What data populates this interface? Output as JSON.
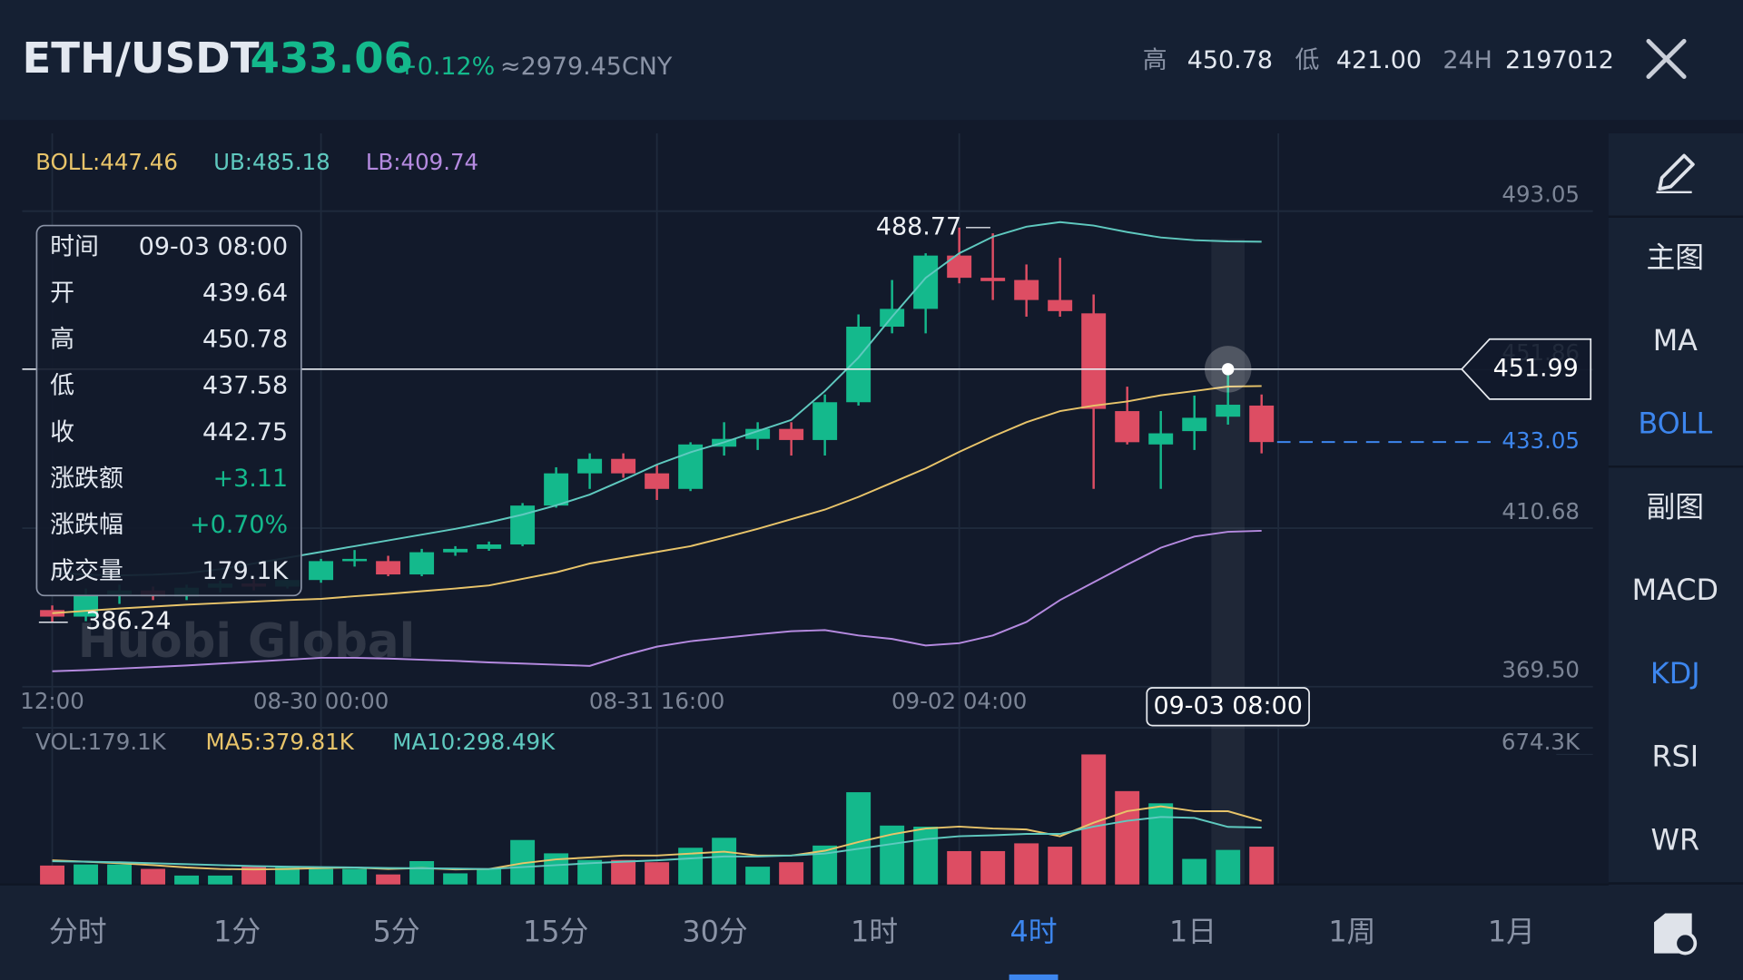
{
  "header": {
    "pair": "ETH/USDT",
    "price": "433.06",
    "change": "+0.12%",
    "cny": "≈2979.45CNY",
    "high_label": "高",
    "high": "450.78",
    "low_label": "低",
    "low": "421.00",
    "vol_label": "24H",
    "vol": "2197012"
  },
  "indicator_legend": {
    "boll": "BOLL:447.46",
    "ub": "UB:485.18",
    "lb": "LB:409.74"
  },
  "volume_legend": {
    "vol": "VOL:179.1K",
    "ma5": "MA5:379.81K",
    "ma10": "MA10:298.49K"
  },
  "watermark": "Huobi Global",
  "tooltip": {
    "rows": [
      {
        "label": "时间",
        "value": "09-03 08:00"
      },
      {
        "label": "开",
        "value": "439.64"
      },
      {
        "label": "高",
        "value": "450.78"
      },
      {
        "label": "低",
        "value": "437.58"
      },
      {
        "label": "收",
        "value": "442.75"
      },
      {
        "label": "涨跌额",
        "value": "+3.11",
        "color": "#14b98c"
      },
      {
        "label": "涨跌幅",
        "value": "+0.70%",
        "color": "#14b98c"
      },
      {
        "label": "成交量",
        "value": "179.1K"
      }
    ]
  },
  "sidebar": [
    {
      "label": "主图"
    },
    {
      "label": "MA"
    },
    {
      "label": "BOLL",
      "active": true
    },
    {
      "label": "副图"
    },
    {
      "label": "MACD"
    },
    {
      "label": "KDJ",
      "active": true
    },
    {
      "label": "RSI"
    },
    {
      "label": "WR"
    }
  ],
  "timeframes": [
    "分时",
    "1分",
    "5分",
    "15分",
    "30分",
    "1时",
    "4时",
    "1日",
    "1周",
    "1月"
  ],
  "timeframe_selected": 6,
  "chart_data": {
    "type": "candlestick",
    "categories": [
      "12:00",
      null,
      null,
      null,
      null,
      null,
      null,
      null,
      "08-30 00:00",
      null,
      null,
      null,
      null,
      null,
      null,
      null,
      null,
      null,
      "08-31 16:00",
      null,
      null,
      null,
      null,
      null,
      null,
      null,
      null,
      "09-02 04:00",
      null,
      null,
      null,
      null,
      null,
      null,
      null,
      null,
      null
    ],
    "open": [
      389.4,
      387.7,
      393.5,
      394.5,
      393,
      395.2,
      396.3,
      395.5,
      397.21,
      402.1,
      402.12,
      398.66,
      404.4,
      405.3,
      406.45,
      416.55,
      424.92,
      428.68,
      424.92,
      420.88,
      431.85,
      433.87,
      436.47,
      433.58,
      443.4,
      463.03,
      467.65,
      481.5,
      475.73,
      475.15,
      469.96,
      466.49,
      441.09,
      432.43,
      435.89,
      439.64,
      442.53
    ],
    "high": [
      390.6,
      395,
      396,
      395.5,
      396,
      397,
      397.5,
      398,
      402.7,
      405,
      403.5,
      405.3,
      406,
      407.2,
      417.2,
      426.5,
      430.12,
      430.12,
      427.23,
      433,
      438.2,
      438.2,
      438.2,
      445.42,
      466.2,
      475.15,
      482.08,
      488.77,
      487.28,
      479.19,
      480.93,
      471.4,
      447.44,
      441.09,
      445.13,
      450.78,
      445.42
    ],
    "low": [
      386.24,
      386.5,
      391,
      392,
      392,
      394,
      394.5,
      395,
      396.5,
      400.7,
      398.2,
      398.2,
      403.5,
      404.8,
      406,
      416,
      420.88,
      423.77,
      418,
      420.31,
      429.54,
      430.99,
      429.54,
      429.54,
      442.53,
      461.3,
      461.3,
      474.29,
      469.96,
      465.63,
      465.63,
      420.88,
      432.43,
      420.88,
      430.99,
      437.58,
      430.12
    ],
    "close": [
      387.7,
      393.5,
      394.5,
      393,
      395.2,
      396.3,
      395.5,
      397.2,
      402.12,
      402.7,
      398.66,
      404.43,
      405.3,
      406.45,
      416.55,
      424.92,
      428.68,
      424.92,
      420.88,
      432.43,
      433.87,
      436.47,
      433.58,
      443.4,
      463.03,
      467.65,
      481.5,
      475.73,
      474.86,
      469.96,
      467.07,
      441.67,
      433.01,
      435.32,
      439.36,
      442.75,
      433.05
    ],
    "up_color": "#14b98c",
    "down_color": "#dd4d63",
    "series": [
      {
        "name": "BOLL",
        "color": "#e8c46a",
        "values": [
          388.6,
          389.2,
          389.8,
          390.3,
          390.8,
          391.2,
          391.6,
          392.0,
          392.3,
          393.0,
          393.6,
          394.3,
          395.0,
          395.8,
          397.5,
          399.2,
          401.5,
          403.0,
          404.5,
          406.0,
          408.2,
          410.5,
          413.0,
          415.5,
          418.8,
          422.5,
          426.2,
          430.5,
          434.5,
          438.2,
          441.1,
          442.5,
          443.6,
          445.2,
          446.3,
          447.46,
          447.6
        ]
      },
      {
        "name": "UB",
        "color": "#5fc9bf",
        "values": [
          399.2,
          398.6,
          398.4,
          398.6,
          399.0,
          400.0,
          401.5,
          403.0,
          404.5,
          406.0,
          407.5,
          409.0,
          410.5,
          412.2,
          414.2,
          416.6,
          419.4,
          423.2,
          427.2,
          430.4,
          433.0,
          435.9,
          438.8,
          446.3,
          455.0,
          465.6,
          475.7,
          482.1,
          486.4,
          489.0,
          490.2,
          489.3,
          487.6,
          486.2,
          485.5,
          485.18,
          485.1
        ]
      },
      {
        "name": "LB",
        "color": "#b58ae0",
        "values": [
          373.5,
          373.8,
          374.2,
          374.6,
          375.0,
          375.5,
          376.0,
          376.5,
          377.0,
          377.0,
          376.8,
          376.5,
          376.2,
          375.8,
          375.5,
          375.2,
          374.9,
          377.6,
          379.9,
          381.3,
          382.2,
          383.1,
          383.9,
          384.2,
          382.8,
          381.9,
          380.2,
          380.8,
          382.8,
          386.3,
          392.0,
          396.6,
          401.2,
          405.6,
          408.5,
          409.74,
          410.0
        ]
      }
    ],
    "ylim": [
      369.5,
      493.05
    ],
    "yticks": [
      493.05,
      451.86,
      410.68,
      {
        "value": 369.5,
        "label": "369.50"
      }
    ],
    "grid": true,
    "max_label": 488.77,
    "min_label": 386.24,
    "last_price": 433.05,
    "last_price_color": "#3d86ee",
    "crosshair": 451.99,
    "crosshair_time": "09-03 08:00",
    "selected_index": 35,
    "volume": [
      98.0,
      103.7,
      103.7,
      80.7,
      46.1,
      46.1,
      92.2,
      92.2,
      80.7,
      80.7,
      51.9,
      121.0,
      57.6,
      80.7,
      230.5,
      161.4,
      126.8,
      126.8,
      115.3,
      190.2,
      242.0,
      92.2,
      115.3,
      201.7,
      478.3,
      305.4,
      299.7,
      172.9,
      172.9,
      213.2,
      195.9,
      674.3,
      484.1,
      420.7,
      132.5,
      179.1,
      195.9
    ],
    "volume_series": [
      {
        "name": "MA5",
        "color": "#e8c46a",
        "values": [
          125,
          118,
          110,
          100,
          88,
          80,
          78,
          80,
          85,
          88,
          80,
          85,
          78,
          80,
          110,
          130,
          140,
          150,
          150,
          160,
          170,
          150,
          150,
          175,
          220,
          260,
          290,
          300,
          290,
          285,
          250,
          320,
          380,
          405,
          380,
          379.81,
          330
        ]
      },
      {
        "name": "MA10",
        "color": "#5fc9bf",
        "values": [
          120,
          118,
          115,
          110,
          105,
          100,
          95,
          92,
          90,
          88,
          85,
          84,
          82,
          80,
          90,
          100,
          110,
          118,
          125,
          135,
          145,
          145,
          150,
          160,
          185,
          210,
          235,
          250,
          255,
          262,
          262,
          300,
          330,
          350,
          345,
          298.49,
          295
        ]
      }
    ],
    "volume_ylim": [
      0,
      674.3
    ],
    "volume_yticks": [
      {
        "value": 674.3,
        "label": "674.3K"
      }
    ]
  }
}
